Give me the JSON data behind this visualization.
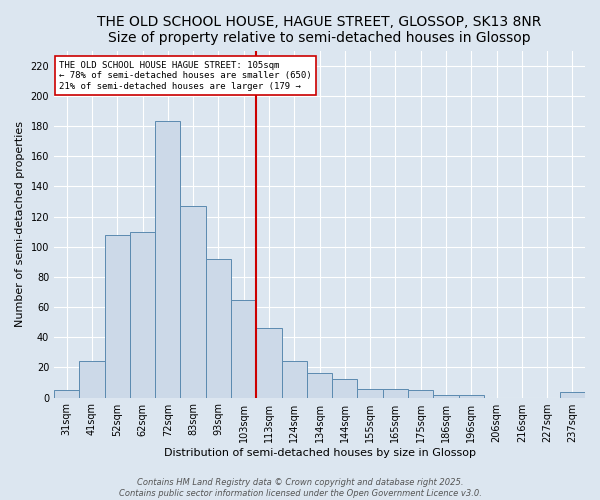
{
  "title": "THE OLD SCHOOL HOUSE, HAGUE STREET, GLOSSOP, SK13 8NR",
  "subtitle": "Size of property relative to semi-detached houses in Glossop",
  "xlabel": "Distribution of semi-detached houses by size in Glossop",
  "ylabel": "Number of semi-detached properties",
  "categories": [
    "31sqm",
    "41sqm",
    "52sqm",
    "62sqm",
    "72sqm",
    "83sqm",
    "93sqm",
    "103sqm",
    "113sqm",
    "124sqm",
    "134sqm",
    "144sqm",
    "155sqm",
    "165sqm",
    "175sqm",
    "186sqm",
    "196sqm",
    "206sqm",
    "216sqm",
    "227sqm",
    "237sqm"
  ],
  "values": [
    5,
    24,
    108,
    110,
    183,
    127,
    92,
    65,
    46,
    24,
    16,
    12,
    6,
    6,
    5,
    2,
    2,
    0,
    0,
    0,
    4
  ],
  "bar_color": "#ccd9e8",
  "bar_edge_color": "#5b8ab0",
  "subject_line_color": "#cc0000",
  "annotation_line1": "THE OLD SCHOOL HOUSE HAGUE STREET: 105sqm",
  "annotation_line2": "← 78% of semi-detached houses are smaller (650)",
  "annotation_line3": "21% of semi-detached houses are larger (179 →",
  "annotation_box_facecolor": "#ffffff",
  "annotation_box_edgecolor": "#cc0000",
  "ylim": [
    0,
    230
  ],
  "yticks": [
    0,
    20,
    40,
    60,
    80,
    100,
    120,
    140,
    160,
    180,
    200,
    220
  ],
  "footer1": "Contains HM Land Registry data © Crown copyright and database right 2025.",
  "footer2": "Contains public sector information licensed under the Open Government Licence v3.0.",
  "bg_color": "#dce6f0",
  "grid_color": "#ffffff",
  "title_fontsize": 10,
  "label_fontsize": 8,
  "tick_fontsize": 7,
  "footer_fontsize": 6
}
